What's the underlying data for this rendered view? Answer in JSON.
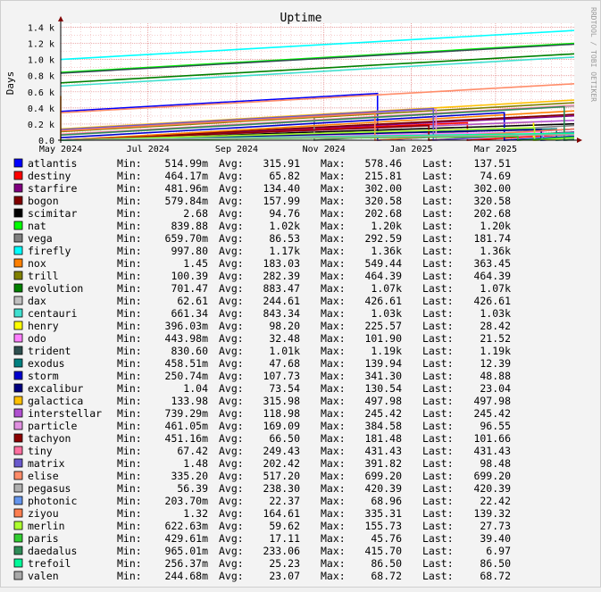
{
  "chart_data": {
    "type": "line",
    "title": "Uptime",
    "ylabel": "Days",
    "watermark": "RRDTOOL / TOBI OETIKER",
    "ylim": [
      0,
      1450
    ],
    "yticks": [
      {
        "value": 0,
        "label": "0.0"
      },
      {
        "value": 200,
        "label": "0.2 k"
      },
      {
        "value": 400,
        "label": "0.4 k"
      },
      {
        "value": 600,
        "label": "0.6 k"
      },
      {
        "value": 800,
        "label": "0.8 k"
      },
      {
        "value": 1000,
        "label": "1.0 k"
      },
      {
        "value": 1200,
        "label": "1.2 k"
      },
      {
        "value": 1400,
        "label": "1.4 k"
      }
    ],
    "x_start": "2024-05-01",
    "x_end": "2025-04-25",
    "xticks": [
      {
        "date": "2024-05-01",
        "label": "May 2024"
      },
      {
        "date": "2024-07-01",
        "label": "Jul 2024"
      },
      {
        "date": "2024-09-01",
        "label": "Sep 2024"
      },
      {
        "date": "2024-11-01",
        "label": "Nov 2024"
      },
      {
        "date": "2025-01-01",
        "label": "Jan 2025"
      },
      {
        "date": "2025-03-01",
        "label": "Mar 2025"
      }
    ],
    "grid": true,
    "legend_position": "bottom",
    "stat_labels": {
      "min": "Min:",
      "avg": "Avg:",
      "max": "Max:",
      "last": "Last:"
    },
    "series": [
      {
        "name": "atlantis",
        "color": "#0000ff",
        "min": "514.99m",
        "avg": "315.91",
        "max": "578.46",
        "last": "137.51"
      },
      {
        "name": "destiny",
        "color": "#ff0000",
        "min": "464.17m",
        "avg": "65.82",
        "max": "215.81",
        "last": "74.69"
      },
      {
        "name": "starfire",
        "color": "#800080",
        "min": "481.96m",
        "avg": "134.40",
        "max": "302.00",
        "last": "302.00"
      },
      {
        "name": "bogon",
        "color": "#800000",
        "min": "579.84m",
        "avg": "157.99",
        "max": "320.58",
        "last": "320.58"
      },
      {
        "name": "scimitar",
        "color": "#000000",
        "min": "2.68",
        "avg": "94.76",
        "max": "202.68",
        "last": "202.68"
      },
      {
        "name": "nat",
        "color": "#00ff00",
        "min": "839.88",
        "avg": "1.02k",
        "max": "1.20k",
        "last": "1.20k"
      },
      {
        "name": "vega",
        "color": "#808080",
        "min": "659.70m",
        "avg": "86.53",
        "max": "292.59",
        "last": "181.74"
      },
      {
        "name": "firefly",
        "color": "#00ffff",
        "min": "997.80",
        "avg": "1.17k",
        "max": "1.36k",
        "last": "1.36k"
      },
      {
        "name": "nox",
        "color": "#ff8000",
        "min": "1.45",
        "avg": "183.03",
        "max": "549.44",
        "last": "363.45"
      },
      {
        "name": "trill",
        "color": "#808000",
        "min": "100.39",
        "avg": "282.39",
        "max": "464.39",
        "last": "464.39"
      },
      {
        "name": "evolution",
        "color": "#008000",
        "min": "701.47",
        "avg": "883.47",
        "max": "1.07k",
        "last": "1.07k"
      },
      {
        "name": "dax",
        "color": "#c0c0c0",
        "min": "62.61",
        "avg": "244.61",
        "max": "426.61",
        "last": "426.61"
      },
      {
        "name": "centauri",
        "color": "#40e0d0",
        "min": "661.34",
        "avg": "843.34",
        "max": "1.03k",
        "last": "1.03k"
      },
      {
        "name": "henry",
        "color": "#ffff00",
        "min": "396.03m",
        "avg": "98.20",
        "max": "225.57",
        "last": "28.42"
      },
      {
        "name": "odo",
        "color": "#ff80ff",
        "min": "443.98m",
        "avg": "32.48",
        "max": "101.90",
        "last": "21.52"
      },
      {
        "name": "trident",
        "color": "#2f4f4f",
        "min": "830.60",
        "avg": "1.01k",
        "max": "1.19k",
        "last": "1.19k"
      },
      {
        "name": "exodus",
        "color": "#008080",
        "min": "458.51m",
        "avg": "47.68",
        "max": "139.94",
        "last": "12.39"
      },
      {
        "name": "storm",
        "color": "#0000cd",
        "min": "250.74m",
        "avg": "107.73",
        "max": "341.30",
        "last": "48.88"
      },
      {
        "name": "excalibur",
        "color": "#000080",
        "min": "1.04",
        "avg": "73.54",
        "max": "130.54",
        "last": "23.04"
      },
      {
        "name": "galactica",
        "color": "#ffc000",
        "min": "133.98",
        "avg": "315.98",
        "max": "497.98",
        "last": "497.98"
      },
      {
        "name": "interstellar",
        "color": "#b050d0",
        "min": "739.29m",
        "avg": "118.98",
        "max": "245.42",
        "last": "245.42"
      },
      {
        "name": "particle",
        "color": "#e090e0",
        "min": "461.05m",
        "avg": "169.09",
        "max": "384.58",
        "last": "96.55"
      },
      {
        "name": "tachyon",
        "color": "#8b0000",
        "min": "451.16m",
        "avg": "66.50",
        "max": "181.48",
        "last": "101.66"
      },
      {
        "name": "tiny",
        "color": "#ff70a0",
        "min": "67.42",
        "avg": "249.43",
        "max": "431.43",
        "last": "431.43"
      },
      {
        "name": "matrix",
        "color": "#6a5acd",
        "min": "1.48",
        "avg": "202.42",
        "max": "391.82",
        "last": "98.48"
      },
      {
        "name": "elise",
        "color": "#ff8c69",
        "min": "335.20",
        "avg": "517.20",
        "max": "699.20",
        "last": "699.20"
      },
      {
        "name": "pegasus",
        "color": "#b0b0b0",
        "min": "56.39",
        "avg": "238.30",
        "max": "420.39",
        "last": "420.39"
      },
      {
        "name": "photonic",
        "color": "#6495ed",
        "min": "203.70m",
        "avg": "22.37",
        "max": "68.96",
        "last": "22.42"
      },
      {
        "name": "ziyou",
        "color": "#ff7f50",
        "min": "1.32",
        "avg": "164.61",
        "max": "335.31",
        "last": "139.32"
      },
      {
        "name": "merlin",
        "color": "#adff2f",
        "min": "622.63m",
        "avg": "59.62",
        "max": "155.73",
        "last": "27.73"
      },
      {
        "name": "paris",
        "color": "#32cd32",
        "min": "429.61m",
        "avg": "17.11",
        "max": "45.76",
        "last": "39.40"
      },
      {
        "name": "daedalus",
        "color": "#2e8b57",
        "min": "965.01m",
        "avg": "233.06",
        "max": "415.70",
        "last": "6.97"
      },
      {
        "name": "trefoil",
        "color": "#00fa9a",
        "min": "256.37m",
        "avg": "25.23",
        "max": "86.50",
        "last": "86.50"
      },
      {
        "name": "valen",
        "color": "#a9a9a9",
        "min": "244.68m",
        "avg": "23.07",
        "max": "68.72",
        "last": "68.72"
      }
    ]
  }
}
